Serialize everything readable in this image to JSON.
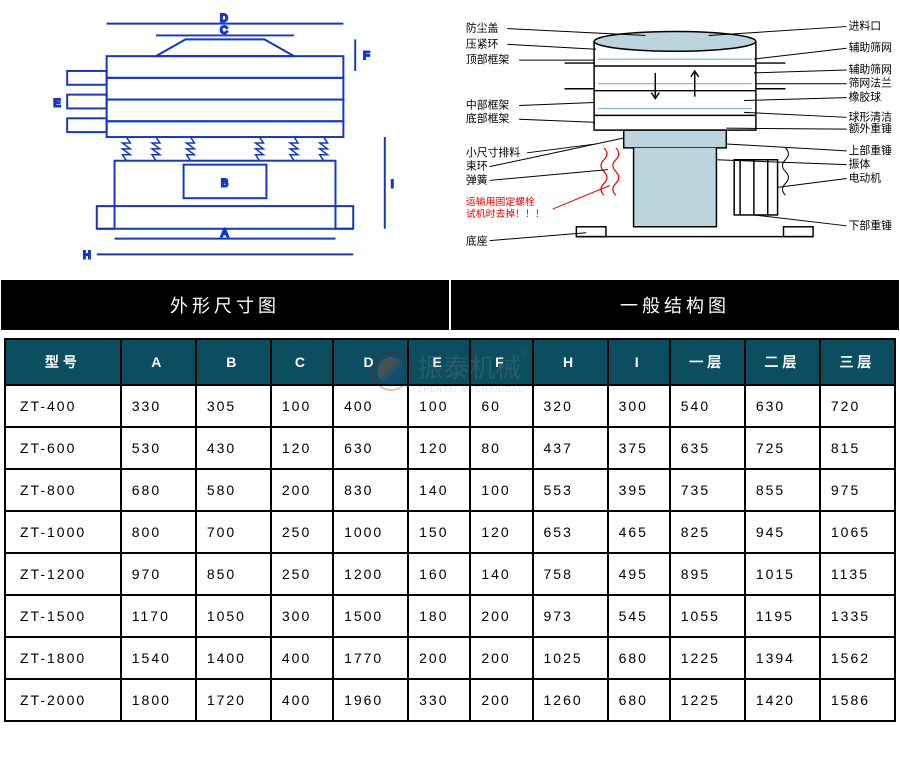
{
  "diagrams": {
    "left_title": "外形尺寸图",
    "right_title": "一般结构图",
    "left_dim_labels": [
      "A",
      "B",
      "C",
      "D",
      "E",
      "F",
      "H",
      "I"
    ],
    "right_labels_left": [
      "防尘盖",
      "压紧环",
      "顶部框架",
      "中部框架",
      "底部框架",
      "小尺寸排料",
      "束环",
      "弹簧",
      "底座"
    ],
    "right_labels_right": [
      "进料口",
      "辅助筛网",
      "辅助筛网",
      "筛网法兰",
      "橡胶球",
      "球形清洁板",
      "额外重锤板",
      "上部重锤",
      "振体",
      "电动机",
      "下部重锤"
    ],
    "right_warning": [
      "运输用固定螺栓",
      "试机时去掉！！！"
    ],
    "stroke_blue": "#1136c9",
    "stroke_hatch": "#6aa9c4",
    "stroke_black": "#000",
    "stroke_red": "#e00"
  },
  "watermark": {
    "main": "振泰机械",
    "sub": "ZHENTAI MECHANICAL",
    "reg": "®"
  },
  "table": {
    "header_bg": "#0a4e5f",
    "columns": [
      "型号",
      "A",
      "B",
      "C",
      "D",
      "E",
      "F",
      "H",
      "I",
      "一层",
      "二层",
      "三层"
    ],
    "rows": [
      [
        "ZT-400",
        "330",
        "305",
        "100",
        "400",
        "100",
        "60",
        "320",
        "300",
        "540",
        "630",
        "720"
      ],
      [
        "ZT-600",
        "530",
        "430",
        "120",
        "630",
        "120",
        "80",
        "437",
        "375",
        "635",
        "725",
        "815"
      ],
      [
        "ZT-800",
        "680",
        "580",
        "200",
        "830",
        "140",
        "100",
        "553",
        "395",
        "735",
        "855",
        "975"
      ],
      [
        "ZT-1000",
        "800",
        "700",
        "250",
        "1000",
        "150",
        "120",
        "653",
        "465",
        "825",
        "945",
        "1065"
      ],
      [
        "ZT-1200",
        "970",
        "850",
        "250",
        "1200",
        "160",
        "140",
        "758",
        "495",
        "895",
        "1015",
        "1135"
      ],
      [
        "ZT-1500",
        "1170",
        "1050",
        "300",
        "1500",
        "180",
        "200",
        "973",
        "545",
        "1055",
        "1195",
        "1335"
      ],
      [
        "ZT-1800",
        "1540",
        "1400",
        "400",
        "1770",
        "200",
        "200",
        "1025",
        "680",
        "1225",
        "1394",
        "1562"
      ],
      [
        "ZT-2000",
        "1800",
        "1720",
        "400",
        "1960",
        "330",
        "200",
        "1260",
        "680",
        "1225",
        "1420",
        "1586"
      ]
    ]
  }
}
